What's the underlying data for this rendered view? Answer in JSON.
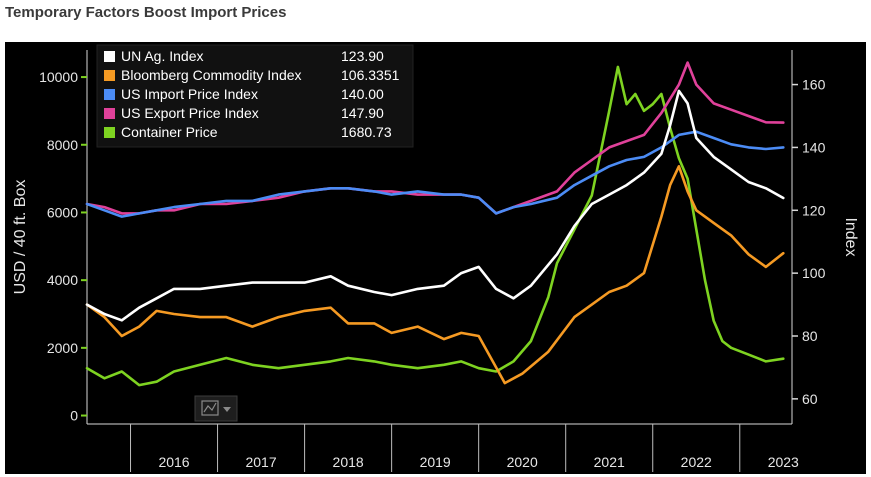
{
  "page_title": "Temporary Factors Boost Import Prices",
  "chart_data": {
    "type": "line",
    "title": "Temporary Factors Boost Import Prices",
    "x_categories": [
      "2016",
      "2017",
      "2018",
      "2019",
      "2020",
      "2021",
      "2022",
      "2023"
    ],
    "xlim": [
      2015.5,
      2023.6
    ],
    "left_axis": {
      "label": "USD / 40 ft. Box",
      "ticks": [
        0,
        2000,
        4000,
        6000,
        8000,
        10000
      ],
      "ylim": [
        -250,
        10800
      ]
    },
    "right_axis": {
      "label": "Index",
      "ticks": [
        60,
        80,
        100,
        120,
        140,
        160
      ],
      "ylim": [
        52,
        171
      ]
    },
    "legend": {
      "placement": "top-left"
    },
    "grid": false,
    "series": [
      {
        "name": "UN Ag. Index",
        "last": "123.90",
        "color": "#ffffff",
        "axis": "right",
        "points": [
          [
            2015.5,
            90
          ],
          [
            2015.7,
            87
          ],
          [
            2015.9,
            85
          ],
          [
            2016.1,
            89
          ],
          [
            2016.3,
            92
          ],
          [
            2016.5,
            95
          ],
          [
            2016.8,
            95
          ],
          [
            2017.1,
            96
          ],
          [
            2017.4,
            97
          ],
          [
            2017.7,
            97
          ],
          [
            2018.0,
            97
          ],
          [
            2018.3,
            99
          ],
          [
            2018.5,
            96
          ],
          [
            2018.8,
            94
          ],
          [
            2019.0,
            93
          ],
          [
            2019.3,
            95
          ],
          [
            2019.6,
            96
          ],
          [
            2019.8,
            100
          ],
          [
            2020.0,
            102
          ],
          [
            2020.2,
            95
          ],
          [
            2020.4,
            92
          ],
          [
            2020.6,
            96
          ],
          [
            2020.9,
            106
          ],
          [
            2021.1,
            115
          ],
          [
            2021.3,
            122
          ],
          [
            2021.5,
            125
          ],
          [
            2021.7,
            128
          ],
          [
            2021.9,
            132
          ],
          [
            2022.1,
            138
          ],
          [
            2022.2,
            147
          ],
          [
            2022.3,
            158
          ],
          [
            2022.4,
            154
          ],
          [
            2022.5,
            143
          ],
          [
            2022.7,
            137
          ],
          [
            2022.9,
            133
          ],
          [
            2023.1,
            129
          ],
          [
            2023.3,
            127
          ],
          [
            2023.5,
            123.9
          ]
        ]
      },
      {
        "name": "Bloomberg Commodity Index",
        "last": "106.3351",
        "color": "#f59a23",
        "axis": "right",
        "points": [
          [
            2015.5,
            90
          ],
          [
            2015.7,
            86
          ],
          [
            2015.9,
            80
          ],
          [
            2016.1,
            83
          ],
          [
            2016.3,
            88
          ],
          [
            2016.5,
            87
          ],
          [
            2016.8,
            86
          ],
          [
            2017.1,
            86
          ],
          [
            2017.4,
            83
          ],
          [
            2017.7,
            86
          ],
          [
            2018.0,
            88
          ],
          [
            2018.3,
            89
          ],
          [
            2018.5,
            84
          ],
          [
            2018.8,
            84
          ],
          [
            2019.0,
            81
          ],
          [
            2019.3,
            83
          ],
          [
            2019.6,
            79
          ],
          [
            2019.8,
            81
          ],
          [
            2020.0,
            80
          ],
          [
            2020.2,
            70
          ],
          [
            2020.3,
            65
          ],
          [
            2020.5,
            68
          ],
          [
            2020.8,
            75
          ],
          [
            2021.1,
            86
          ],
          [
            2021.3,
            90
          ],
          [
            2021.5,
            94
          ],
          [
            2021.7,
            96
          ],
          [
            2021.9,
            100
          ],
          [
            2022.1,
            118
          ],
          [
            2022.2,
            128
          ],
          [
            2022.3,
            134
          ],
          [
            2022.4,
            126
          ],
          [
            2022.5,
            120
          ],
          [
            2022.7,
            116
          ],
          [
            2022.9,
            112
          ],
          [
            2023.1,
            106
          ],
          [
            2023.3,
            102
          ],
          [
            2023.5,
            106.3351
          ]
        ]
      },
      {
        "name": "US Import Price Index",
        "last": "140.00",
        "color": "#4c8cf5",
        "axis": "right",
        "points": [
          [
            2015.5,
            122
          ],
          [
            2015.7,
            120
          ],
          [
            2015.9,
            118
          ],
          [
            2016.1,
            119
          ],
          [
            2016.3,
            120
          ],
          [
            2016.5,
            121
          ],
          [
            2016.8,
            122
          ],
          [
            2017.1,
            123
          ],
          [
            2017.4,
            123
          ],
          [
            2017.7,
            125
          ],
          [
            2018.0,
            126
          ],
          [
            2018.3,
            127
          ],
          [
            2018.5,
            127
          ],
          [
            2018.8,
            126
          ],
          [
            2019.0,
            125
          ],
          [
            2019.3,
            126
          ],
          [
            2019.6,
            125
          ],
          [
            2019.8,
            125
          ],
          [
            2020.0,
            124
          ],
          [
            2020.2,
            119
          ],
          [
            2020.4,
            121
          ],
          [
            2020.6,
            122
          ],
          [
            2020.9,
            124
          ],
          [
            2021.1,
            128
          ],
          [
            2021.3,
            131
          ],
          [
            2021.5,
            134
          ],
          [
            2021.7,
            136
          ],
          [
            2021.9,
            137
          ],
          [
            2022.1,
            140
          ],
          [
            2022.3,
            144
          ],
          [
            2022.5,
            145
          ],
          [
            2022.7,
            143
          ],
          [
            2022.9,
            141
          ],
          [
            2023.1,
            140
          ],
          [
            2023.3,
            139.5
          ],
          [
            2023.5,
            140
          ]
        ]
      },
      {
        "name": "US Export Price Index",
        "last": "147.90",
        "color": "#e0419a",
        "axis": "right",
        "points": [
          [
            2015.5,
            122
          ],
          [
            2015.7,
            121
          ],
          [
            2015.9,
            119
          ],
          [
            2016.1,
            119
          ],
          [
            2016.3,
            120
          ],
          [
            2016.5,
            120
          ],
          [
            2016.8,
            122
          ],
          [
            2017.1,
            122
          ],
          [
            2017.4,
            123
          ],
          [
            2017.7,
            124
          ],
          [
            2018.0,
            126
          ],
          [
            2018.3,
            127
          ],
          [
            2018.5,
            127
          ],
          [
            2018.8,
            126
          ],
          [
            2019.0,
            126
          ],
          [
            2019.3,
            125
          ],
          [
            2019.6,
            125
          ],
          [
            2019.8,
            125
          ],
          [
            2020.0,
            124
          ],
          [
            2020.2,
            119
          ],
          [
            2020.4,
            121
          ],
          [
            2020.6,
            123
          ],
          [
            2020.9,
            126
          ],
          [
            2021.1,
            132
          ],
          [
            2021.3,
            136
          ],
          [
            2021.5,
            140
          ],
          [
            2021.7,
            142
          ],
          [
            2021.9,
            144
          ],
          [
            2022.1,
            151
          ],
          [
            2022.3,
            160
          ],
          [
            2022.4,
            167
          ],
          [
            2022.5,
            160
          ],
          [
            2022.7,
            154
          ],
          [
            2022.9,
            152
          ],
          [
            2023.1,
            150
          ],
          [
            2023.3,
            148
          ],
          [
            2023.5,
            147.9
          ]
        ]
      },
      {
        "name": "Container Price",
        "last": "1680.73",
        "color": "#7ed321",
        "axis": "left",
        "points": [
          [
            2015.5,
            1400
          ],
          [
            2015.7,
            1100
          ],
          [
            2015.9,
            1300
          ],
          [
            2016.1,
            900
          ],
          [
            2016.3,
            1000
          ],
          [
            2016.5,
            1300
          ],
          [
            2016.8,
            1500
          ],
          [
            2017.1,
            1700
          ],
          [
            2017.4,
            1500
          ],
          [
            2017.7,
            1400
          ],
          [
            2018.0,
            1500
          ],
          [
            2018.3,
            1600
          ],
          [
            2018.5,
            1700
          ],
          [
            2018.8,
            1600
          ],
          [
            2019.0,
            1500
          ],
          [
            2019.3,
            1400
          ],
          [
            2019.6,
            1500
          ],
          [
            2019.8,
            1600
          ],
          [
            2020.0,
            1400
          ],
          [
            2020.2,
            1300
          ],
          [
            2020.4,
            1600
          ],
          [
            2020.6,
            2200
          ],
          [
            2020.8,
            3500
          ],
          [
            2020.9,
            4500
          ],
          [
            2021.1,
            5500
          ],
          [
            2021.3,
            6500
          ],
          [
            2021.5,
            9000
          ],
          [
            2021.6,
            10300
          ],
          [
            2021.7,
            9200
          ],
          [
            2021.8,
            9500
          ],
          [
            2021.9,
            9000
          ],
          [
            2022.0,
            9200
          ],
          [
            2022.1,
            9500
          ],
          [
            2022.2,
            8500
          ],
          [
            2022.3,
            7600
          ],
          [
            2022.4,
            7000
          ],
          [
            2022.5,
            5500
          ],
          [
            2022.6,
            4000
          ],
          [
            2022.7,
            2800
          ],
          [
            2022.8,
            2200
          ],
          [
            2022.9,
            2000
          ],
          [
            2023.1,
            1800
          ],
          [
            2023.3,
            1600
          ],
          [
            2023.5,
            1680.73
          ]
        ]
      }
    ]
  },
  "toolbar": {
    "chart_icon": "line-chart-icon",
    "dropdown_icon": "caret-down-icon"
  }
}
